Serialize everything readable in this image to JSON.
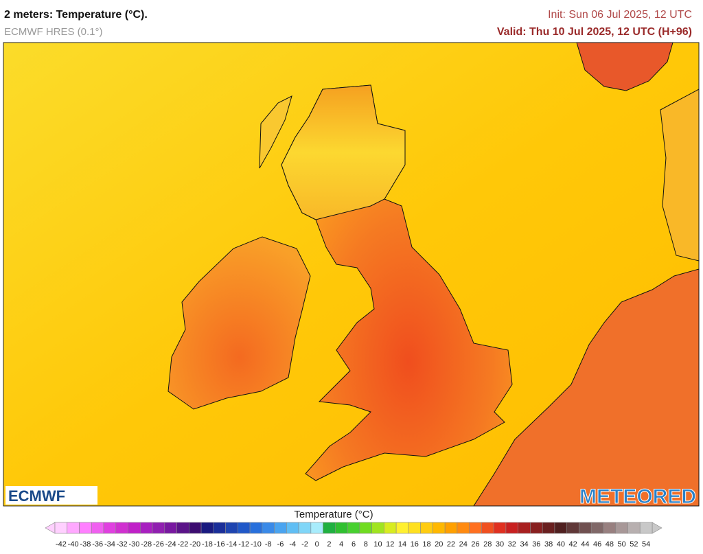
{
  "header": {
    "title": "2 meters: Temperature (°C).",
    "model": "ECMWF HRES (0.1°)",
    "init": "Init: Sun 06 Jul 2025, 12 UTC",
    "valid": "Valid: Thu 10 Jul 2025, 12 UTC (H+96)"
  },
  "logos": {
    "left": "ECMWF",
    "right": "METEORED"
  },
  "legend": {
    "title": "Temperature (°C)",
    "ticks": [
      -42,
      -40,
      -38,
      -36,
      -34,
      -32,
      -30,
      -28,
      -26,
      -24,
      -22,
      -20,
      -18,
      -16,
      -14,
      -12,
      -10,
      -8,
      -6,
      -4,
      -2,
      0,
      2,
      4,
      6,
      8,
      10,
      12,
      14,
      16,
      18,
      20,
      22,
      24,
      26,
      28,
      30,
      32,
      34,
      36,
      38,
      40,
      42,
      44,
      46,
      48,
      50,
      52,
      54
    ],
    "colors": [
      "#ffd0ff",
      "#ffa8ff",
      "#ff80ff",
      "#f060f0",
      "#e040e0",
      "#d030d0",
      "#c020c8",
      "#a820c0",
      "#9020b0",
      "#7818a0",
      "#5a1488",
      "#3c0c70",
      "#1a1a80",
      "#1a2e99",
      "#1e44b0",
      "#2058c8",
      "#2870dc",
      "#3a8ae8",
      "#4aa4f0",
      "#60bef4",
      "#80d6f8",
      "#a8ecfc",
      "#20b040",
      "#30c030",
      "#48d030",
      "#70dc20",
      "#a0e420",
      "#d8ec20",
      "#fff030",
      "#ffe020",
      "#ffcc10",
      "#ffb800",
      "#ffa000",
      "#ff8a10",
      "#ff7020",
      "#f05020",
      "#e03020",
      "#c82020",
      "#a82020",
      "#882020",
      "#6a2020",
      "#502020",
      "#603838",
      "#705050",
      "#806868",
      "#988080",
      "#a89898",
      "#b8b0b0",
      "#c8c8c8"
    ]
  }
}
